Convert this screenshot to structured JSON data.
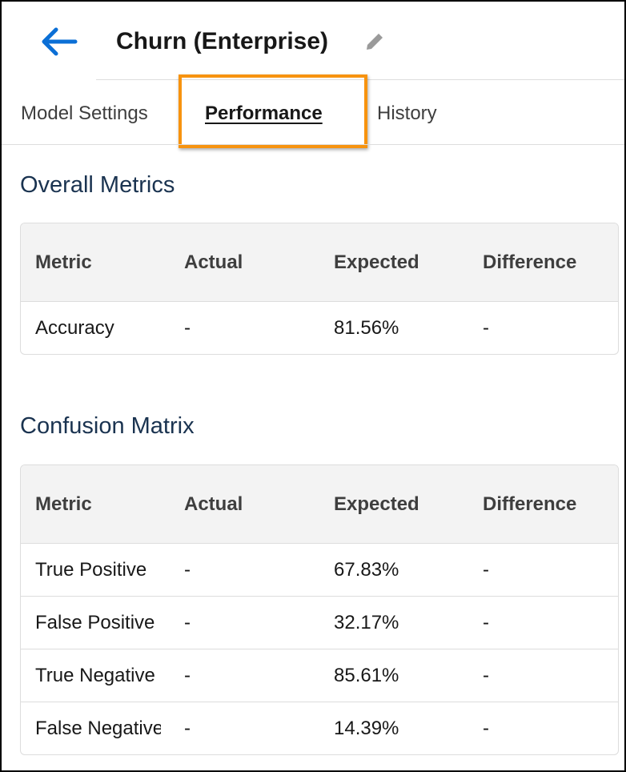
{
  "header": {
    "title": "Churn (Enterprise)"
  },
  "tabs": [
    "Model Settings",
    "Performance",
    "History"
  ],
  "sections": [
    {
      "title": "Overall Metrics",
      "table": {
        "columns": [
          "Metric",
          "Actual",
          "Expected",
          "Difference"
        ],
        "rows": [
          [
            "Accuracy",
            "-",
            "81.56%",
            "-"
          ]
        ]
      }
    },
    {
      "title": "Confusion Matrix",
      "table": {
        "columns": [
          "Metric",
          "Actual",
          "Expected",
          "Difference"
        ],
        "rows": [
          [
            "True Positive",
            "-",
            "67.83%",
            "-"
          ],
          [
            "False Positive",
            "-",
            "32.17%",
            "-"
          ],
          [
            "True Negative",
            "-",
            "85.61%",
            "-"
          ],
          [
            "False Negative",
            "-",
            "14.39%",
            "-"
          ]
        ]
      }
    }
  ]
}
